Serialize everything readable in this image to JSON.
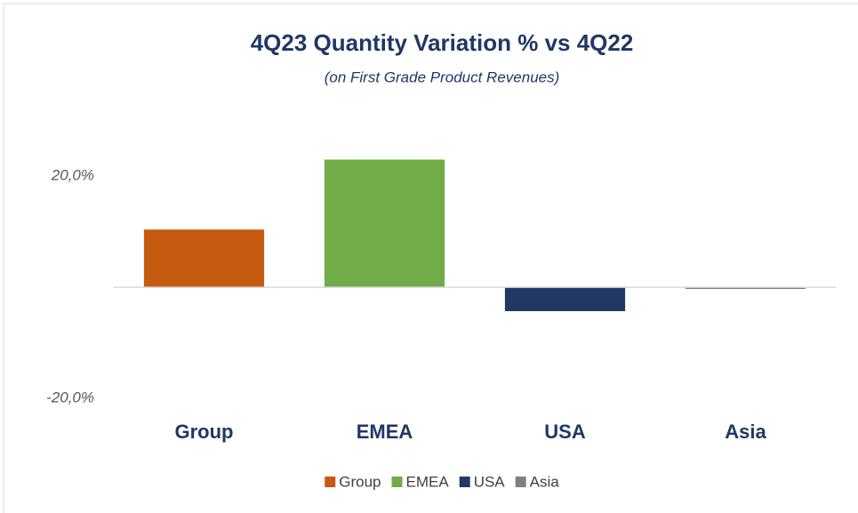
{
  "chart_data": {
    "type": "bar",
    "title": "4Q23 Quantity Variation % vs 4Q22",
    "subtitle": "(on First Grade Product Revenues)",
    "categories": [
      "Group",
      "EMEA",
      "USA",
      "Asia"
    ],
    "values": [
      10.4,
      23.0,
      -4.3,
      -0.3
    ],
    "colors": [
      "#c55a11",
      "#70ad47",
      "#1f3864",
      "#7f7f7f"
    ],
    "ylim": [
      -20,
      25
    ],
    "yticks": [
      {
        "value": 20,
        "label": "20,0%"
      },
      {
        "value": -20,
        "label": "-20,0%"
      }
    ],
    "legend": "bottom"
  }
}
